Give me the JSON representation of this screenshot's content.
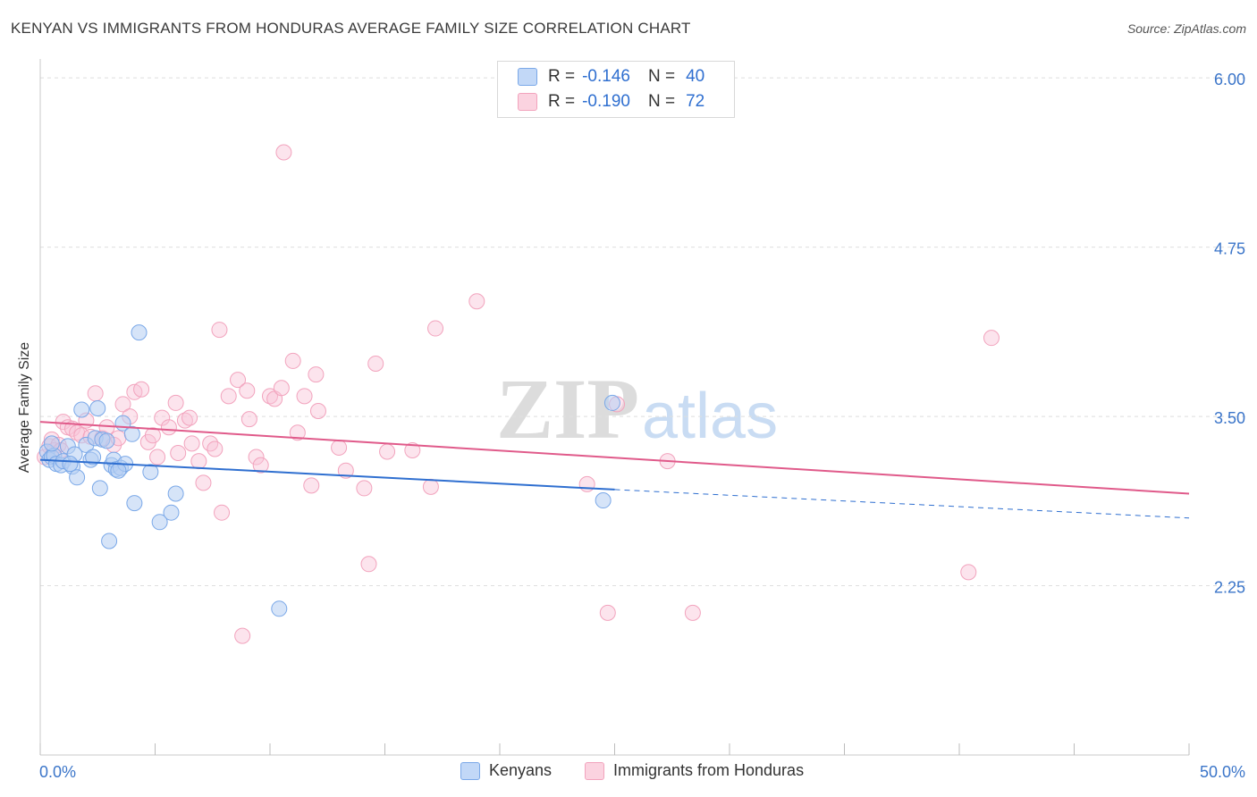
{
  "title": "KENYAN VS IMMIGRANTS FROM HONDURAS AVERAGE FAMILY SIZE CORRELATION CHART",
  "source": "Source: ZipAtlas.com",
  "watermark": {
    "zip": "ZIP",
    "atlas": "atlas"
  },
  "legend": {
    "r_label": "R =",
    "n_label": "N =",
    "kenyans": {
      "r": "-0.146",
      "n": "40"
    },
    "honduras": {
      "r": "-0.190",
      "n": "72"
    }
  },
  "bottom_legend": {
    "kenyans": "Kenyans",
    "honduras": "Immigrants from Honduras"
  },
  "chart_data": {
    "type": "scatter",
    "ylabel": "Average Family Size",
    "xlabel": "",
    "xlim": [
      0,
      50
    ],
    "ylim": [
      1.0,
      6.1
    ],
    "x_tick_labels": [
      "0.0%",
      "50.0%"
    ],
    "y_ticks": [
      2.25,
      3.5,
      4.75,
      6.0
    ],
    "y_tick_labels": [
      "2.25",
      "3.50",
      "4.75",
      "6.00"
    ],
    "colors": {
      "kenyans": "#7aa8e8",
      "honduras": "#f2a3bd",
      "kenyans_line": "#2f6fd0",
      "honduras_line": "#e05a8a",
      "tick_label": "#3b75c9"
    },
    "series": [
      {
        "name": "Kenyans",
        "points": [
          [
            0.3,
            3.24
          ],
          [
            0.4,
            3.18
          ],
          [
            0.5,
            3.2
          ],
          [
            0.6,
            3.21
          ],
          [
            0.7,
            3.15
          ],
          [
            0.9,
            3.14
          ],
          [
            1.0,
            3.17
          ],
          [
            1.2,
            3.28
          ],
          [
            1.4,
            3.13
          ],
          [
            1.5,
            3.22
          ],
          [
            1.6,
            3.05
          ],
          [
            1.8,
            3.55
          ],
          [
            2.0,
            3.29
          ],
          [
            2.2,
            3.18
          ],
          [
            2.4,
            3.34
          ],
          [
            2.5,
            3.56
          ],
          [
            2.6,
            2.97
          ],
          [
            2.7,
            3.33
          ],
          [
            2.9,
            3.32
          ],
          [
            3.0,
            2.58
          ],
          [
            3.1,
            3.14
          ],
          [
            3.2,
            3.18
          ],
          [
            3.3,
            3.11
          ],
          [
            3.5,
            3.12
          ],
          [
            3.6,
            3.45
          ],
          [
            3.7,
            3.15
          ],
          [
            4.0,
            3.37
          ],
          [
            4.1,
            2.86
          ],
          [
            4.3,
            4.12
          ],
          [
            4.8,
            3.09
          ],
          [
            5.2,
            2.72
          ],
          [
            5.7,
            2.79
          ],
          [
            5.9,
            2.93
          ],
          [
            10.4,
            2.08
          ],
          [
            24.5,
            2.88
          ],
          [
            24.9,
            3.6
          ],
          [
            0.5,
            3.3
          ],
          [
            1.3,
            3.15
          ],
          [
            2.3,
            3.2
          ],
          [
            3.4,
            3.1
          ]
        ]
      },
      {
        "name": "Immigrants from Honduras",
        "points": [
          [
            0.2,
            3.2
          ],
          [
            0.4,
            3.28
          ],
          [
            0.5,
            3.33
          ],
          [
            0.6,
            3.25
          ],
          [
            0.8,
            3.29
          ],
          [
            1.0,
            3.46
          ],
          [
            1.2,
            3.42
          ],
          [
            1.4,
            3.41
          ],
          [
            1.6,
            3.38
          ],
          [
            1.8,
            3.36
          ],
          [
            2.0,
            3.47
          ],
          [
            2.2,
            3.35
          ],
          [
            2.4,
            3.67
          ],
          [
            2.7,
            3.34
          ],
          [
            2.9,
            3.42
          ],
          [
            3.2,
            3.29
          ],
          [
            3.4,
            3.34
          ],
          [
            3.6,
            3.59
          ],
          [
            3.9,
            3.5
          ],
          [
            4.1,
            3.68
          ],
          [
            4.4,
            3.7
          ],
          [
            4.7,
            3.31
          ],
          [
            4.9,
            3.36
          ],
          [
            5.1,
            3.2
          ],
          [
            5.3,
            3.49
          ],
          [
            5.6,
            3.42
          ],
          [
            5.9,
            3.6
          ],
          [
            6.0,
            3.23
          ],
          [
            6.3,
            3.47
          ],
          [
            6.5,
            3.49
          ],
          [
            6.6,
            3.3
          ],
          [
            6.9,
            3.17
          ],
          [
            7.1,
            3.01
          ],
          [
            7.4,
            3.3
          ],
          [
            7.6,
            3.26
          ],
          [
            7.8,
            4.14
          ],
          [
            7.9,
            2.79
          ],
          [
            8.2,
            3.65
          ],
          [
            8.6,
            3.77
          ],
          [
            8.8,
            1.88
          ],
          [
            9.0,
            3.69
          ],
          [
            9.1,
            3.48
          ],
          [
            9.4,
            3.2
          ],
          [
            9.6,
            3.14
          ],
          [
            10.0,
            3.65
          ],
          [
            10.2,
            3.63
          ],
          [
            10.5,
            3.71
          ],
          [
            10.6,
            5.45
          ],
          [
            11.0,
            3.91
          ],
          [
            11.2,
            3.38
          ],
          [
            11.5,
            3.65
          ],
          [
            11.8,
            2.99
          ],
          [
            12.0,
            3.81
          ],
          [
            12.1,
            3.54
          ],
          [
            13.0,
            3.27
          ],
          [
            13.3,
            3.1
          ],
          [
            14.1,
            2.97
          ],
          [
            14.3,
            2.41
          ],
          [
            14.6,
            3.89
          ],
          [
            15.1,
            3.24
          ],
          [
            16.2,
            3.25
          ],
          [
            17.0,
            2.98
          ],
          [
            17.2,
            4.15
          ],
          [
            19.0,
            4.35
          ],
          [
            23.8,
            3.0
          ],
          [
            24.7,
            2.05
          ],
          [
            25.1,
            3.59
          ],
          [
            27.3,
            3.17
          ],
          [
            28.4,
            2.05
          ],
          [
            40.4,
            2.35
          ],
          [
            41.4,
            4.08
          ],
          [
            0.9,
            3.25
          ]
        ]
      }
    ],
    "trend_lines": [
      {
        "name": "Kenyans",
        "x0": 0,
        "y0": 3.18,
        "x1": 25,
        "y1": 2.96,
        "dashed_from": 25,
        "dashed_to": 50,
        "dashed_y_end": 2.75
      },
      {
        "name": "Immigrants from Honduras",
        "x0": 0,
        "y0": 3.46,
        "x1": 50,
        "y1": 2.93
      }
    ]
  }
}
